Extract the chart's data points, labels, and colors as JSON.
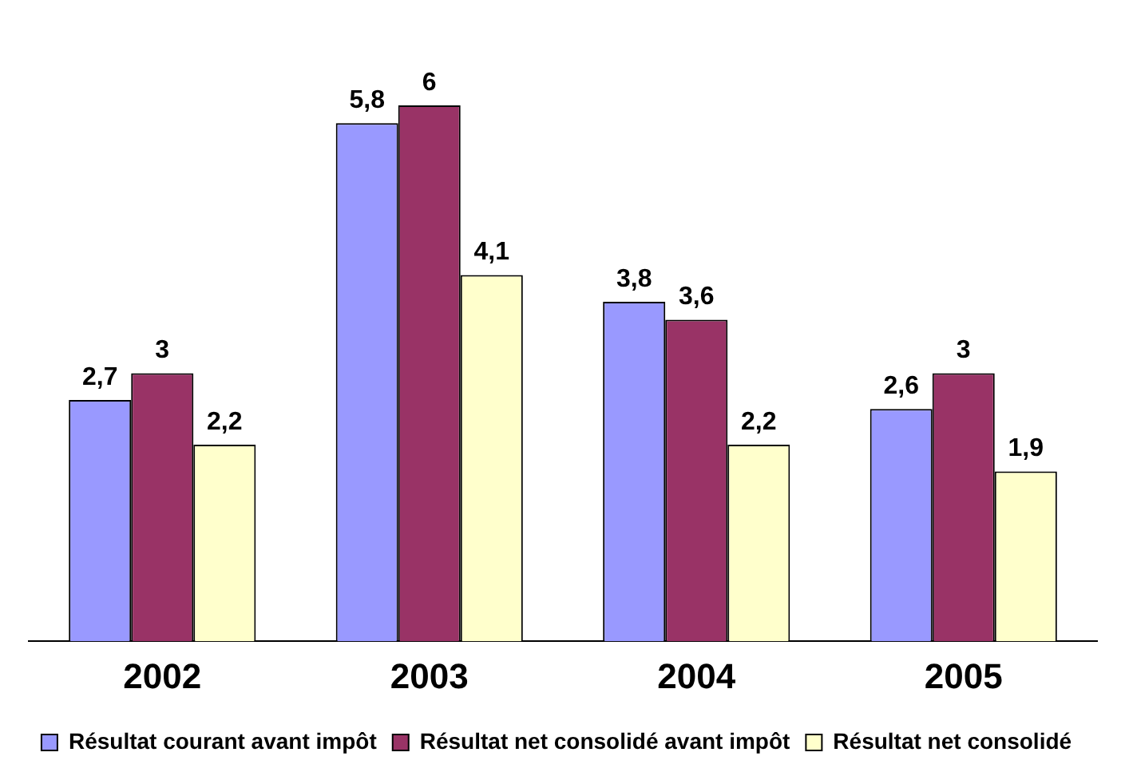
{
  "chart_data": {
    "type": "bar",
    "categories": [
      "2002",
      "2003",
      "2004",
      "2005"
    ],
    "series": [
      {
        "name": "Résultat courant avant impôt",
        "color": "#9999ff",
        "values": [
          2.7,
          5.8,
          3.8,
          2.6
        ],
        "value_labels": [
          "2,7",
          "5,8",
          "3,8",
          "2,6"
        ]
      },
      {
        "name": "Résultat net consolidé avant impôt",
        "color": "#993366",
        "values": [
          3,
          6,
          3.6,
          3
        ],
        "value_labels": [
          "3",
          "6",
          "3,6",
          "3"
        ]
      },
      {
        "name": "Résultat net consolidé",
        "color": "#ffffcc",
        "values": [
          2.2,
          4.1,
          2.2,
          1.9
        ],
        "value_labels": [
          "2,2",
          "4,1",
          "2,2",
          "1,9"
        ]
      }
    ],
    "legend": "bottom",
    "grid": false
  }
}
